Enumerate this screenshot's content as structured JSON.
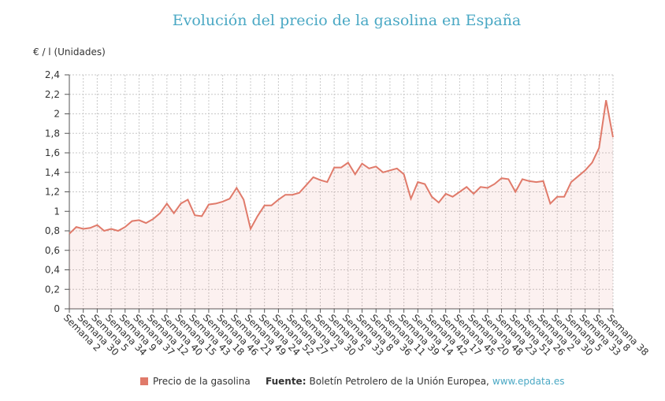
{
  "chart_data": {
    "type": "area",
    "title": "Evolución del precio de la gasolina en España",
    "y_label": "€ / l (Unidades)",
    "categories": [
      "Semana 2",
      null,
      "Semana 30",
      null,
      "Semana 5",
      null,
      "Semana 34",
      null,
      "Semana 9",
      null,
      "Semana 37",
      null,
      "Semana 12",
      null,
      "Semana 40",
      null,
      "Semana 15",
      null,
      "Semana 43",
      null,
      "Semana 18",
      null,
      "Semana 46",
      null,
      "Semana 21",
      null,
      "Semana 49",
      null,
      "Semana 24",
      null,
      "Semana 52",
      null,
      "Semana 27",
      null,
      "Semana 2",
      null,
      "Semana 30",
      null,
      "Semana 5",
      null,
      "Semana 33",
      null,
      "Semana 8",
      null,
      "Semana 36",
      null,
      "Semana 11",
      null,
      "Semana 39",
      null,
      "Semana 14",
      null,
      "Semana 42",
      null,
      "Semana 17",
      null,
      "Semana 45",
      null,
      "Semana 20",
      null,
      "Semana 48",
      null,
      "Semana 23",
      null,
      "Semana 51",
      null,
      "Semana 26",
      null,
      "Semana 2",
      null,
      "Semana 30",
      null,
      "Semana 5",
      null,
      "Semana 33",
      null,
      "Semana 8",
      null,
      "Semana 38"
    ],
    "series": [
      {
        "name": "Precio de la gasolina",
        "color": "#e07a6a",
        "values": [
          0.77,
          0.84,
          0.82,
          0.83,
          0.86,
          0.8,
          0.82,
          0.8,
          0.84,
          0.9,
          0.91,
          0.88,
          0.92,
          0.98,
          1.08,
          0.98,
          1.08,
          1.12,
          0.96,
          0.95,
          1.07,
          1.08,
          1.1,
          1.13,
          1.24,
          1.12,
          0.82,
          0.95,
          1.06,
          1.06,
          1.12,
          1.17,
          1.17,
          1.19,
          1.27,
          1.35,
          1.32,
          1.3,
          1.45,
          1.45,
          1.5,
          1.38,
          1.49,
          1.44,
          1.46,
          1.4,
          1.42,
          1.44,
          1.38,
          1.13,
          1.3,
          1.28,
          1.15,
          1.09,
          1.18,
          1.15,
          1.2,
          1.25,
          1.18,
          1.25,
          1.24,
          1.28,
          1.34,
          1.33,
          1.2,
          1.33,
          1.31,
          1.3,
          1.31,
          1.08,
          1.15,
          1.15,
          1.3,
          1.36,
          1.42,
          1.5,
          1.65,
          2.14,
          1.76
        ]
      }
    ],
    "ylim": [
      0,
      2.4
    ],
    "yticks": [
      0,
      {
        "value": 0.2,
        "label": "0,2"
      },
      {
        "value": 0.4,
        "label": "0,4"
      },
      {
        "value": 0.6,
        "label": "0,6"
      },
      {
        "value": 0.8,
        "label": "0,8"
      },
      1,
      {
        "value": 1.2,
        "label": "1,2"
      },
      {
        "value": 1.4,
        "label": "1,4"
      },
      {
        "value": 1.6,
        "label": "1,6"
      },
      {
        "value": 1.8,
        "label": "1,8"
      },
      2,
      {
        "value": 2.2,
        "label": "2,2"
      },
      {
        "value": 2.4,
        "label": "2,4"
      }
    ],
    "grid": true,
    "legend": "bottom",
    "source_label": "Fuente:",
    "source_text": "Boletín Petrolero de la Unión Europea,",
    "source_link": "www.epdata.es"
  }
}
